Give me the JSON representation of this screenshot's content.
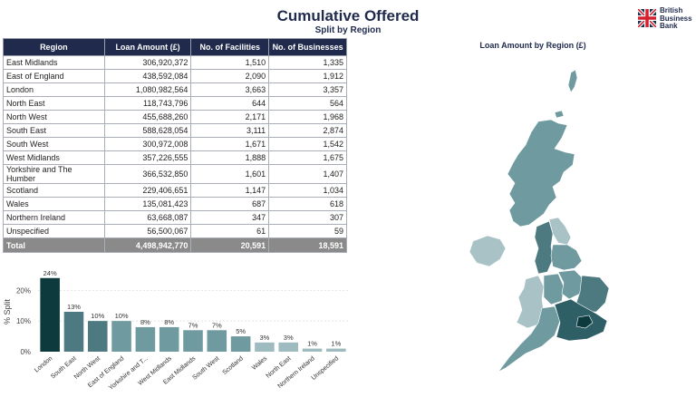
{
  "header": {
    "title": "Cumulative Offered",
    "subtitle": "Split by Region"
  },
  "logo": {
    "line1": "British",
    "line2": "Business",
    "line3": "Bank"
  },
  "table": {
    "columns": [
      "Region",
      "Loan Amount (£)",
      "No. of Facilities",
      "No. of Businesses"
    ],
    "rows": [
      {
        "region": "East Midlands",
        "loan": "306,920,372",
        "facilities": "1,510",
        "businesses": "1,335"
      },
      {
        "region": "East of England",
        "loan": "438,592,084",
        "facilities": "2,090",
        "businesses": "1,912"
      },
      {
        "region": "London",
        "loan": "1,080,982,564",
        "facilities": "3,663",
        "businesses": "3,357"
      },
      {
        "region": "North East",
        "loan": "118,743,796",
        "facilities": "644",
        "businesses": "564"
      },
      {
        "region": "North West",
        "loan": "455,688,260",
        "facilities": "2,171",
        "businesses": "1,968"
      },
      {
        "region": "South East",
        "loan": "588,628,054",
        "facilities": "3,111",
        "businesses": "2,874"
      },
      {
        "region": "South West",
        "loan": "300,972,008",
        "facilities": "1,671",
        "businesses": "1,542"
      },
      {
        "region": "West Midlands",
        "loan": "357,226,555",
        "facilities": "1,888",
        "businesses": "1,675"
      },
      {
        "region": "Yorkshire and The Humber",
        "loan": "366,532,850",
        "facilities": "1,601",
        "businesses": "1,407"
      },
      {
        "region": "Scotland",
        "loan": "229,406,651",
        "facilities": "1,147",
        "businesses": "1,034"
      },
      {
        "region": "Wales",
        "loan": "135,081,423",
        "facilities": "687",
        "businesses": "618"
      },
      {
        "region": "Northern Ireland",
        "loan": "63,668,087",
        "facilities": "347",
        "businesses": "307"
      },
      {
        "region": "Unspecified",
        "loan": "56,500,067",
        "facilities": "61",
        "businesses": "59"
      }
    ],
    "total": {
      "region": "Total",
      "loan": "4,498,942,770",
      "facilities": "20,591",
      "businesses": "18,591"
    }
  },
  "map": {
    "title": "Loan Amount by Region (£)"
  },
  "colors": {
    "navy": "#1f2a4d",
    "bar_highlight": "#0d3a3c",
    "bar_dark": "#4d7a80",
    "bar_mid": "#6f9aa0",
    "bar_light": "#9ebcc0"
  },
  "chart_data": {
    "type": "bar",
    "ylabel": "% Split",
    "ylim": [
      0,
      0.26
    ],
    "yticks": [
      0,
      0.1,
      0.2
    ],
    "ytick_labels": [
      "0%",
      "10%",
      "20%"
    ],
    "categories": [
      "London",
      "South East",
      "North West",
      "East of England",
      "Yorkshire and T...",
      "West Midlands",
      "East Midlands",
      "South West",
      "Scotland",
      "Wales",
      "North East",
      "Northern Ireland",
      "Unspecified"
    ],
    "values": [
      0.24,
      0.13,
      0.1,
      0.1,
      0.08,
      0.08,
      0.07,
      0.07,
      0.05,
      0.03,
      0.03,
      0.01,
      0.01
    ],
    "data_labels": [
      "24%",
      "13%",
      "10%",
      "10%",
      "8%",
      "8%",
      "7%",
      "7%",
      "5%",
      "3%",
      "3%",
      "1%",
      "1%"
    ],
    "grid": true
  }
}
